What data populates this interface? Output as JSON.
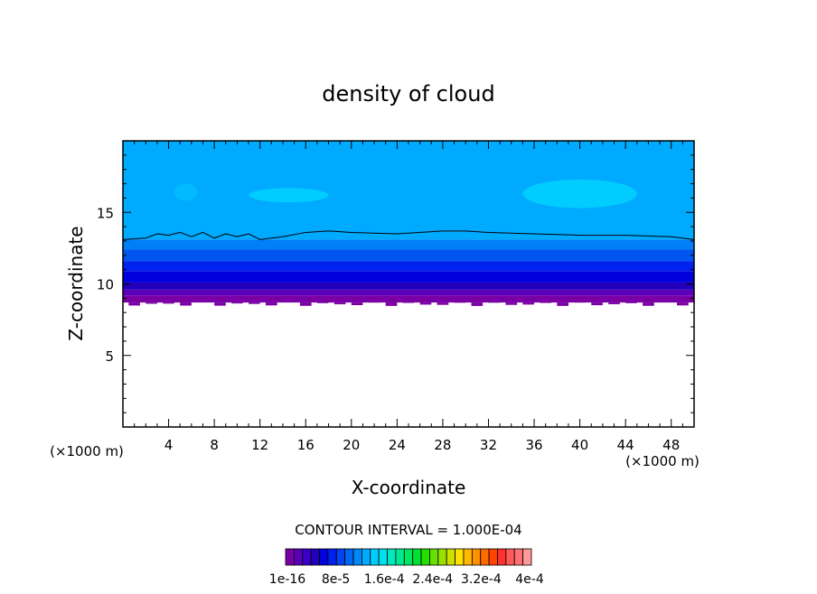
{
  "chart_data": {
    "type": "heatmap",
    "title": "density of cloud",
    "xlabel": "X-coordinate",
    "ylabel": "Z-coordinate",
    "x_unit": "(×1000 m)",
    "z_unit": "(×1000 m)",
    "xlim": [
      0,
      50
    ],
    "ylim": [
      0,
      20
    ],
    "x_ticks": [
      4,
      8,
      12,
      16,
      20,
      24,
      28,
      32,
      36,
      40,
      44,
      48
    ],
    "y_ticks": [
      5,
      10,
      15
    ],
    "grid": false,
    "contour_interval": "CONTOUR INTERVAL = 1.000E-04",
    "bands": [
      {
        "z_low": 8.7,
        "z_high": 9.2,
        "color": "#7a00a6"
      },
      {
        "z_low": 9.2,
        "z_high": 9.6,
        "color": "#5a00b8"
      },
      {
        "z_low": 9.6,
        "z_high": 10.1,
        "color": "#2200bb"
      },
      {
        "z_low": 10.1,
        "z_high": 10.9,
        "color": "#0000dd"
      },
      {
        "z_low": 10.9,
        "z_high": 11.6,
        "color": "#0022ee"
      },
      {
        "z_low": 11.6,
        "z_high": 12.4,
        "color": "#0055f0"
      },
      {
        "z_low": 12.4,
        "z_high": 13.1,
        "color": "#0080f5"
      },
      {
        "z_low": 13.1,
        "z_high": 20.0,
        "color": "#00aaff"
      }
    ],
    "patches": [
      {
        "x": [
          11,
          18
        ],
        "z": [
          15.7,
          16.7
        ],
        "color": "#00ccff"
      },
      {
        "x": [
          35,
          45
        ],
        "z": [
          15.3,
          17.3
        ],
        "color": "#00ccff"
      },
      {
        "x": [
          4.5,
          6.5
        ],
        "z": [
          15.8,
          17.0
        ],
        "color": "#00bbff"
      }
    ],
    "contour_line": {
      "x": [
        0,
        2,
        3,
        4,
        5,
        6,
        7,
        8,
        9,
        10,
        11,
        12,
        13,
        14,
        16,
        18,
        20,
        24,
        28,
        30,
        32,
        36,
        40,
        44,
        48,
        50
      ],
      "z": [
        13.1,
        13.2,
        13.5,
        13.4,
        13.6,
        13.3,
        13.6,
        13.2,
        13.5,
        13.3,
        13.5,
        13.1,
        13.2,
        13.3,
        13.6,
        13.7,
        13.6,
        13.5,
        13.7,
        13.7,
        13.6,
        13.5,
        13.4,
        13.4,
        13.3,
        13.1
      ]
    },
    "colorbar": {
      "colors": [
        "#7a00a6",
        "#5a00b8",
        "#3a00c8",
        "#2200bb",
        "#0000dd",
        "#0022ee",
        "#0044f0",
        "#0066f5",
        "#0088f8",
        "#00aaff",
        "#00ccff",
        "#00e0ee",
        "#00e8c0",
        "#00e890",
        "#00e860",
        "#00e030",
        "#22e000",
        "#66e000",
        "#99e000",
        "#cce000",
        "#ffe000",
        "#ffb800",
        "#ff9000",
        "#ff6a00",
        "#ff4400",
        "#ff3030",
        "#ff5a5a",
        "#ff7070",
        "#ff9a9a"
      ],
      "labels": [
        "1e-16",
        "8e-5",
        "1.6e-4",
        "2.4e-4",
        "3.2e-4",
        "4e-4"
      ]
    }
  }
}
